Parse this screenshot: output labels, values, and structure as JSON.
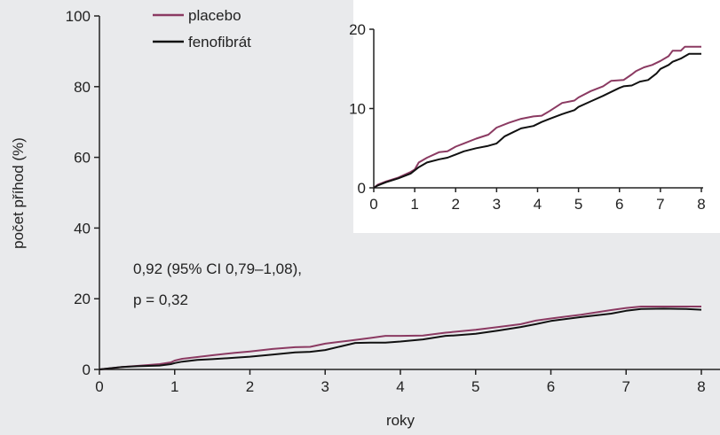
{
  "colors": {
    "placebo": "#8b3a62",
    "fenofibrat": "#111111",
    "background": "#e9eaec",
    "inset_background": "#ffffff",
    "axis": "#222222"
  },
  "annotation": {
    "line1": "0,92 (95% CI 0,79–1,08),",
    "line2": "p = 0,32"
  },
  "chart_data": [
    {
      "type": "line",
      "xlabel": "roky",
      "ylabel": "počet příhod (%)",
      "xlim": [
        0,
        8
      ],
      "ylim": [
        0,
        100
      ],
      "xticks": [
        "0",
        "1",
        "2",
        "3",
        "4",
        "5",
        "6",
        "7",
        "8"
      ],
      "yticks": [
        "0",
        "20",
        "40",
        "60",
        "80",
        "100"
      ],
      "grid": false,
      "legend_position": "top-left",
      "series": [
        {
          "name": "placebo",
          "x": [
            0,
            0.3,
            0.5,
            0.8,
            0.95,
            1.0,
            1.1,
            1.3,
            1.5,
            1.8,
            2.0,
            2.3,
            2.6,
            2.8,
            3.0,
            3.3,
            3.6,
            3.8,
            4.0,
            4.3,
            4.6,
            5.0,
            5.3,
            5.6,
            5.8,
            6.0,
            6.4,
            6.8,
            7.0,
            7.2,
            7.5,
            7.8,
            8.0
          ],
          "values": [
            0,
            0.7,
            1.0,
            1.5,
            2.0,
            2.5,
            3.0,
            3.5,
            4.0,
            4.7,
            5.1,
            5.8,
            6.3,
            6.4,
            7.3,
            8.1,
            8.9,
            9.5,
            9.5,
            9.6,
            10.4,
            11.2,
            12.0,
            12.8,
            13.8,
            14.4,
            15.5,
            16.8,
            17.4,
            17.8,
            17.8,
            17.8,
            17.8
          ]
        },
        {
          "name": "fenofibrát",
          "x": [
            0,
            0.3,
            0.5,
            0.8,
            0.95,
            1.0,
            1.1,
            1.3,
            1.5,
            1.8,
            2.0,
            2.3,
            2.6,
            2.8,
            3.0,
            3.2,
            3.4,
            3.6,
            3.8,
            4.0,
            4.3,
            4.6,
            4.7,
            5.0,
            5.3,
            5.6,
            5.8,
            6.0,
            6.4,
            6.8,
            7.0,
            7.2,
            7.5,
            7.8,
            8.0
          ],
          "values": [
            0,
            0.7,
            0.9,
            1.1,
            1.5,
            1.8,
            2.2,
            2.7,
            2.9,
            3.3,
            3.6,
            4.2,
            4.8,
            5.0,
            5.5,
            6.5,
            7.5,
            7.6,
            7.6,
            7.9,
            8.5,
            9.5,
            9.6,
            10.1,
            11.0,
            12.0,
            12.8,
            13.7,
            14.8,
            15.8,
            16.6,
            17.1,
            17.2,
            17.1,
            16.9
          ]
        }
      ]
    },
    {
      "type": "line",
      "xlim": [
        0,
        8
      ],
      "ylim": [
        0,
        20
      ],
      "xticks": [
        "0",
        "1",
        "2",
        "3",
        "4",
        "5",
        "6",
        "7",
        "8"
      ],
      "yticks": [
        "0",
        "10",
        "20"
      ],
      "grid": false,
      "series": [
        {
          "name": "placebo",
          "x": [
            0,
            0.1,
            0.3,
            0.6,
            0.9,
            1.0,
            1.1,
            1.3,
            1.6,
            1.8,
            2.0,
            2.2,
            2.5,
            2.8,
            3.0,
            3.3,
            3.6,
            3.9,
            4.1,
            4.3,
            4.6,
            4.9,
            5.0,
            5.3,
            5.6,
            5.8,
            6.1,
            6.3,
            6.4,
            6.6,
            6.8,
            7.0,
            7.2,
            7.3,
            7.5,
            7.6,
            7.7,
            8.0
          ],
          "values": [
            0,
            0.4,
            0.8,
            1.3,
            2.0,
            2.3,
            3.2,
            3.8,
            4.5,
            4.6,
            5.2,
            5.6,
            6.2,
            6.7,
            7.6,
            8.2,
            8.7,
            9.0,
            9.1,
            9.7,
            10.7,
            11.0,
            11.4,
            12.2,
            12.8,
            13.5,
            13.6,
            14.3,
            14.7,
            15.2,
            15.5,
            16.0,
            16.6,
            17.3,
            17.3,
            17.8,
            17.8,
            17.8
          ]
        },
        {
          "name": "fenofibrát",
          "x": [
            0,
            0.1,
            0.3,
            0.6,
            0.9,
            1.0,
            1.1,
            1.3,
            1.6,
            1.8,
            2.0,
            2.2,
            2.5,
            2.8,
            3.0,
            3.2,
            3.4,
            3.6,
            3.9,
            4.1,
            4.3,
            4.6,
            4.9,
            5.0,
            5.3,
            5.6,
            5.8,
            6.0,
            6.1,
            6.3,
            6.5,
            6.7,
            6.9,
            7.0,
            7.2,
            7.3,
            7.5,
            7.7,
            8.0
          ],
          "values": [
            0,
            0.3,
            0.7,
            1.2,
            1.8,
            2.2,
            2.6,
            3.2,
            3.6,
            3.8,
            4.2,
            4.6,
            5.0,
            5.3,
            5.6,
            6.5,
            7.0,
            7.5,
            7.8,
            8.3,
            8.7,
            9.3,
            9.8,
            10.2,
            10.9,
            11.6,
            12.1,
            12.6,
            12.8,
            12.9,
            13.4,
            13.6,
            14.4,
            15.0,
            15.5,
            15.9,
            16.3,
            16.9,
            16.9
          ]
        }
      ]
    }
  ]
}
